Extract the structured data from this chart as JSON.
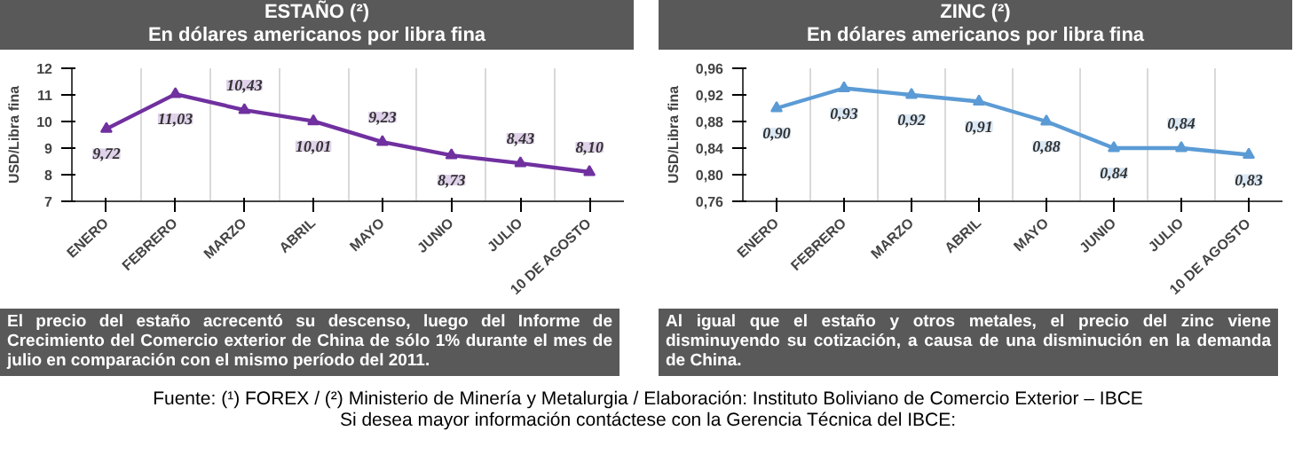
{
  "chart_data": [
    {
      "type": "line",
      "title": "ESTAÑO (²)",
      "subtitle": "En dólares americanos por libra fina",
      "ylabel": "USD/Libra fina",
      "categories": [
        "ENERO",
        "FEBRERO",
        "MARZO",
        "ABRIL",
        "MAYO",
        "JUNIO",
        "JULIO",
        "10 DE AGOSTO"
      ],
      "series": [
        {
          "color": "#7030a0",
          "values": [
            9.72,
            11.03,
            10.43,
            10.01,
            9.23,
            8.73,
            8.43,
            8.1
          ],
          "value_labels": [
            "9,72",
            "11,03",
            "10,43",
            "10,01",
            "9,23",
            "8,73",
            "8,43",
            "8,10"
          ]
        }
      ],
      "ylim": [
        7,
        12
      ],
      "yticks": [
        7,
        8,
        9,
        10,
        11,
        12
      ],
      "grid": "x",
      "marker": "triangle",
      "annotations": [
        "El precio del estaño acrecentó su descenso, luego del Informe de Crecimiento del Comercio exterior de China de sólo 1% durante el mes de julio en comparación con el mismo período del 2011."
      ]
    },
    {
      "type": "line",
      "title": "ZINC (²)",
      "subtitle": "En dólares americanos por libra fina",
      "ylabel": "USD/Libra fina",
      "categories": [
        "ENERO",
        "FEBRERO",
        "MARZO",
        "ABRIL",
        "MAYO",
        "JUNIO",
        "JULIO",
        "10 DE AGOSTO"
      ],
      "series": [
        {
          "color": "#5b9bd5",
          "values": [
            0.9,
            0.93,
            0.92,
            0.91,
            0.88,
            0.84,
            0.84,
            0.83
          ],
          "value_labels": [
            "0,90",
            "0,93",
            "0,92",
            "0,91",
            "0,88",
            "0,84",
            "0,84",
            "0,83"
          ]
        }
      ],
      "ylim": [
        0.76,
        0.96
      ],
      "yticks": [
        {
          "value": 0.76,
          "label": "0,76"
        },
        {
          "value": 0.8,
          "label": "0,80"
        },
        {
          "value": 0.84,
          "label": "0,84"
        },
        {
          "value": 0.88,
          "label": "0,88"
        },
        {
          "value": 0.92,
          "label": "0,92"
        },
        {
          "value": 0.96,
          "label": "0,96"
        }
      ],
      "grid": "x",
      "marker": "triangle",
      "annotations": [
        "Al igual que el estaño y otros metales, el precio del zinc viene disminuyendo su cotización, a causa de una disminución en la demanda de China.",
        "Fuente: (¹) FOREX  /  (²) Ministerio de Minería y Metalurgia  /  Elaboración: Instituto Boliviano de Comercio Exterior – IBCE",
        "Si desea mayor información contáctese con la Gerencia Técnica del IBCE:"
      ]
    }
  ]
}
